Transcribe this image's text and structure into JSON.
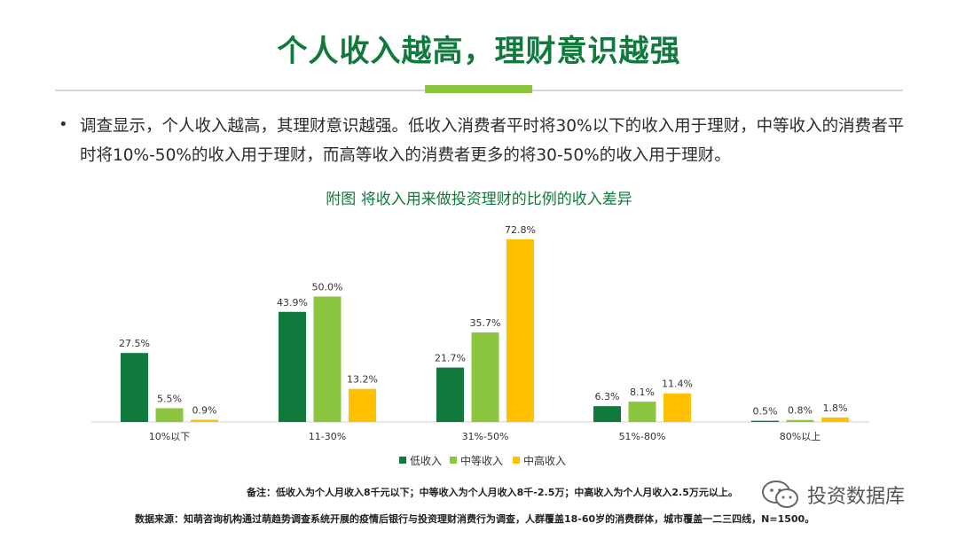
{
  "header": {
    "title": "个人收入越高，理财意识越强"
  },
  "body": {
    "bullet": "调查显示，个人收入越高，其理财意识越强。低收入消费者平时将30%以下的收入用于理财，中等收入的消费者平时将10%-50%的收入用于理财，而高等收入的消费者更多的将30-50%的收入用于理财。"
  },
  "chart_data": {
    "type": "bar",
    "title": "附图 将收入用来做投资理财的比例的收入差异",
    "categories": [
      "10%以下",
      "11-30%",
      "31%-50%",
      "51%-80%",
      "80%以上"
    ],
    "series": [
      {
        "name": "低收入",
        "values": [
          27.5,
          43.9,
          21.7,
          6.3,
          0.5
        ],
        "color": "#0f7a3c"
      },
      {
        "name": "中等收入",
        "values": [
          5.5,
          50.0,
          35.7,
          8.1,
          0.8
        ],
        "color": "#8cc63f"
      },
      {
        "name": "中高收入",
        "values": [
          0.9,
          13.2,
          72.8,
          11.4,
          1.8
        ],
        "color": "#ffc000"
      }
    ],
    "ylim": [
      0,
      75
    ],
    "value_suffix": "%",
    "legend_position": "bottom",
    "grid": false
  },
  "footer": {
    "note": "备注：低收入为个人月收入8千元以下；中等收入为个人月收入8千-2.5万；中高收入为个人月收入2.5万元以上。",
    "source": "数据来源：知萌咨询机构通过萌趋势调查系统开展的疫情后银行与投资理财消费行为调查，人群覆盖18-60岁的消费群体，城市覆盖一二三四线，N=1500。",
    "watermark": "投资数据库",
    "watermark_icon": "wechat-icon"
  }
}
